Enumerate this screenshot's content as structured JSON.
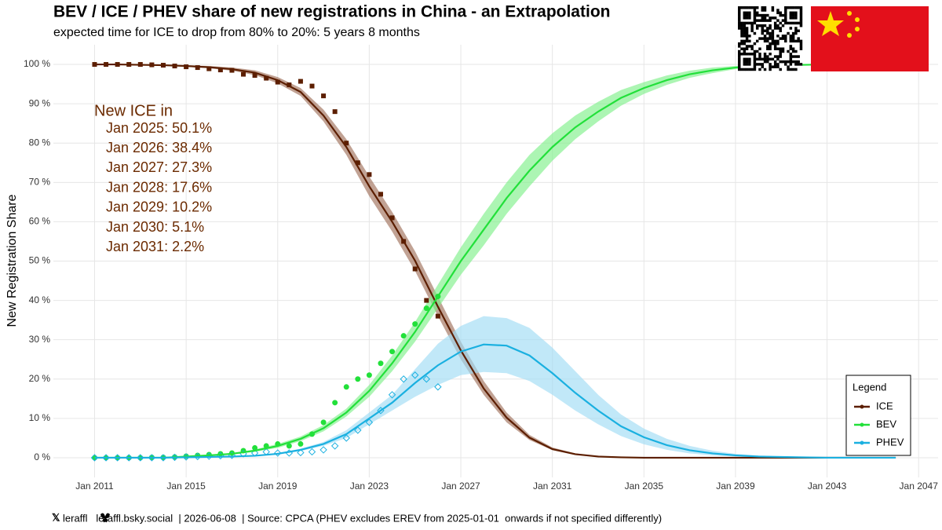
{
  "chart_data": {
    "type": "line",
    "title": "BEV / ICE / PHEV share of new registrations in China - an Extrapolation",
    "subtitle": "expected time for ICE to drop from 80% to 20%: 5 years 8 months",
    "y_label": "New Registration Share",
    "annotation_title": "New ICE in",
    "annotation_lines": [
      "Jan 2025: 50.1%",
      "Jan 2026: 38.4%",
      "Jan 2027: 27.3%",
      "Jan 2028: 17.6%",
      "Jan 2029: 10.2%",
      "Jan 2030: 5.1%",
      "Jan 2031: 2.2%"
    ],
    "footer": "leraffl   leraffl.bsky.social  | 2026-06-08  | Source: CPCA (PHEV excludes EREV from 2025-01-01  onwards if not specified differently)",
    "legend_title": "Legend",
    "legend_position": "bottom-right",
    "grid": true,
    "xlim": [
      2009.2,
      2047.85
    ],
    "ylim": [
      -5,
      105
    ],
    "xticks": [
      {
        "value": 2011,
        "label": "Jan 2011"
      },
      {
        "value": 2015,
        "label": "Jan 2015"
      },
      {
        "value": 2019,
        "label": "Jan 2019"
      },
      {
        "value": 2023,
        "label": "Jan 2023"
      },
      {
        "value": 2027,
        "label": "Jan 2027"
      },
      {
        "value": 2031,
        "label": "Jan 2031"
      },
      {
        "value": 2035,
        "label": "Jan 2035"
      },
      {
        "value": 2039,
        "label": "Jan 2039"
      },
      {
        "value": 2043,
        "label": "Jan 2043"
      },
      {
        "value": 2047,
        "label": "Jan 2047"
      }
    ],
    "yticks": [
      {
        "value": 0,
        "label": "0 %"
      },
      {
        "value": 10,
        "label": "10 %"
      },
      {
        "value": 20,
        "label": "20 %"
      },
      {
        "value": 30,
        "label": "30 %"
      },
      {
        "value": 40,
        "label": "40 %"
      },
      {
        "value": 50,
        "label": "50 %"
      },
      {
        "value": 60,
        "label": "60 %"
      },
      {
        "value": 70,
        "label": "70 %"
      },
      {
        "value": 80,
        "label": "80 %"
      },
      {
        "value": 90,
        "label": "90 %"
      },
      {
        "value": 100,
        "label": "100 %"
      }
    ],
    "x": [
      2011,
      2012,
      2013,
      2014,
      2015,
      2016,
      2017,
      2018,
      2019,
      2020,
      2021,
      2022,
      2023,
      2024,
      2025,
      2026,
      2027,
      2028,
      2029,
      2030,
      2031,
      2032,
      2033,
      2034,
      2035,
      2036,
      2037,
      2038,
      2039,
      2040,
      2041,
      2042,
      2043,
      2044,
      2045,
      2046
    ],
    "obs_x": [
      2011,
      2011.5,
      2012,
      2012.5,
      2013,
      2013.5,
      2014,
      2014.5,
      2015,
      2015.5,
      2016,
      2016.5,
      2017,
      2017.5,
      2018,
      2018.5,
      2019,
      2019.5,
      2020,
      2020.5,
      2021,
      2021.5,
      2022,
      2022.5,
      2023,
      2023.5,
      2024,
      2024.5,
      2025,
      2025.5,
      2026
    ],
    "series": [
      {
        "name": "ICE",
        "color": "#5c1e00",
        "band_color": "#a0705a",
        "marker": "square",
        "values": [
          100,
          100,
          99.9,
          99.8,
          99.6,
          99.3,
          98.8,
          97.9,
          96,
          93,
          87,
          79,
          69,
          60,
          50.1,
          38.4,
          27.3,
          17.6,
          10.2,
          5.1,
          2.2,
          0.9,
          0.3,
          0.1,
          0,
          0,
          0,
          0,
          0,
          0,
          0,
          0,
          0,
          0,
          0,
          0
        ],
        "band_lower": [
          100,
          100,
          99.9,
          99.7,
          99.4,
          99,
          98.4,
          97.3,
          95.2,
          92,
          85.5,
          77,
          66.5,
          57.5,
          47.5,
          36,
          25,
          16,
          9,
          4.5,
          1.9,
          0.7,
          0.2,
          0.1,
          0,
          0,
          0,
          0,
          0,
          0,
          0,
          0,
          0,
          0,
          0,
          0
        ],
        "band_upper": [
          100,
          100,
          99.9,
          99.9,
          99.8,
          99.6,
          99.2,
          98.5,
          96.8,
          94,
          88.5,
          81,
          71.5,
          62.5,
          52.5,
          41,
          29.5,
          19.5,
          11.5,
          5.8,
          2.6,
          1.1,
          0.4,
          0.1,
          0,
          0,
          0,
          0,
          0,
          0,
          0,
          0,
          0,
          0,
          0,
          0
        ],
        "obs_values": [
          100,
          100,
          100,
          100,
          100,
          99.9,
          99.8,
          99.6,
          99.4,
          99.2,
          98.9,
          98.6,
          98.5,
          97.5,
          97.2,
          96.5,
          95.5,
          94.8,
          95.7,
          94.5,
          92,
          88,
          80,
          75,
          72,
          67,
          61,
          55,
          48,
          40,
          36
        ]
      },
      {
        "name": "BEV",
        "color": "#22e03a",
        "band_color": "#7ff08a",
        "marker": "circle",
        "values": [
          0,
          0,
          0,
          0,
          0.3,
          0.6,
          1,
          1.8,
          3,
          4.8,
          7.5,
          11.5,
          17,
          24,
          32,
          41,
          50,
          58,
          66,
          73,
          79,
          84,
          88,
          91.5,
          94,
          96,
          97.5,
          98.5,
          99.2,
          99.6,
          99.8,
          99.9,
          100,
          100,
          100,
          100
        ],
        "band_lower": [
          0,
          0,
          0,
          0,
          0.2,
          0.4,
          0.8,
          1.5,
          2.5,
          4.2,
          6.7,
          10.5,
          15.5,
          22,
          29.5,
          38,
          46.5,
          54,
          62,
          69,
          75.5,
          81,
          85.5,
          89.5,
          92.5,
          94.8,
          96.6,
          97.8,
          98.8,
          99.3,
          99.6,
          99.8,
          99.9,
          100,
          100,
          100
        ],
        "band_upper": [
          0,
          0,
          0,
          0,
          0.4,
          0.8,
          1.2,
          2.1,
          3.5,
          5.4,
          8.3,
          12.5,
          18.5,
          26,
          34.5,
          44,
          53.5,
          62,
          70,
          77,
          82.5,
          87,
          90.5,
          93.5,
          95.5,
          97.2,
          98.4,
          99.2,
          99.6,
          99.8,
          99.9,
          100,
          100,
          100,
          100,
          100
        ],
        "obs_values": [
          0,
          0,
          0,
          0,
          0,
          0.1,
          0.1,
          0.2,
          0.4,
          0.6,
          0.8,
          1,
          1.2,
          1.8,
          2.5,
          3,
          3.5,
          3,
          3.5,
          6,
          9,
          14,
          18,
          20,
          21,
          24,
          27,
          31,
          34,
          38,
          41
        ]
      },
      {
        "name": "PHEV",
        "color": "#1ab0e0",
        "band_color": "#9fdcf5",
        "marker": "diamond",
        "values": [
          0,
          0,
          0,
          0,
          0.1,
          0.2,
          0.3,
          0.5,
          1,
          2,
          3.5,
          6,
          10,
          14,
          19,
          23.5,
          27,
          28.8,
          28.5,
          26,
          21.5,
          16.5,
          12,
          8,
          5.2,
          3.2,
          1.9,
          1.1,
          0.6,
          0.3,
          0.2,
          0.1,
          0,
          0,
          0,
          0
        ],
        "band_lower": [
          0,
          0,
          0,
          0,
          0,
          0.1,
          0.2,
          0.4,
          0.8,
          1.7,
          3,
          5,
          8.5,
          12,
          15.5,
          18.5,
          21,
          21.8,
          21.5,
          19.5,
          16,
          12,
          8.5,
          5.5,
          3.4,
          2,
          1.1,
          0.6,
          0.3,
          0.1,
          0.1,
          0,
          0,
          0,
          0,
          0
        ],
        "band_upper": [
          0,
          0,
          0,
          0,
          0.2,
          0.3,
          0.4,
          0.6,
          1.2,
          2.3,
          4,
          7,
          11.5,
          16,
          22.5,
          29,
          33.5,
          36,
          35.5,
          33,
          28,
          22,
          16,
          11,
          7.4,
          4.8,
          3,
          1.8,
          1,
          0.6,
          0.3,
          0.2,
          0.1,
          0,
          0,
          0
        ],
        "obs_values": [
          0,
          0,
          0,
          0,
          0,
          0,
          0,
          0.1,
          0.2,
          0.3,
          0.4,
          0.5,
          0.6,
          1,
          1.2,
          1.5,
          1.2,
          1.2,
          1.3,
          1.5,
          2,
          3,
          5,
          7,
          9,
          12,
          16,
          20,
          21,
          20,
          18
        ]
      }
    ]
  }
}
